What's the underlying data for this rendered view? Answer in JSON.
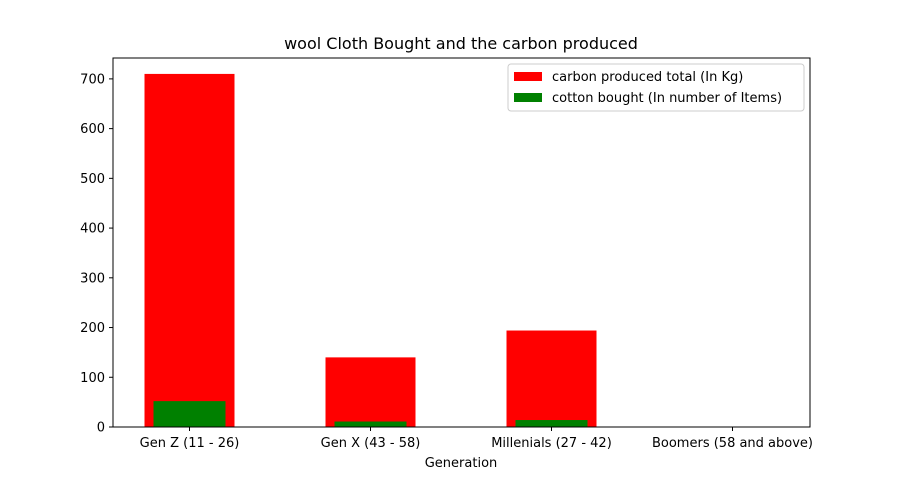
{
  "chart_data": {
    "type": "bar",
    "title": "wool Cloth Bought and the carbon produced",
    "xlabel": "Generation",
    "ylabel": "",
    "categories": [
      "Gen Z (11 - 26)",
      "Gen X (43 - 58)",
      "Millenials (27 - 42)",
      "Boomers (58 and above)"
    ],
    "ylim": [
      0,
      742
    ],
    "yticks": [
      0,
      100,
      200,
      300,
      400,
      500,
      600,
      700
    ],
    "grid": false,
    "legend_position": "top-right",
    "series": [
      {
        "name": "carbon produced total (In Kg)",
        "color": "#ff0000",
        "values": [
          710,
          140,
          194,
          0
        ]
      },
      {
        "name": "cotton bought (In number of Items)",
        "color": "#008000",
        "values": [
          52,
          11,
          14,
          0
        ]
      }
    ]
  }
}
